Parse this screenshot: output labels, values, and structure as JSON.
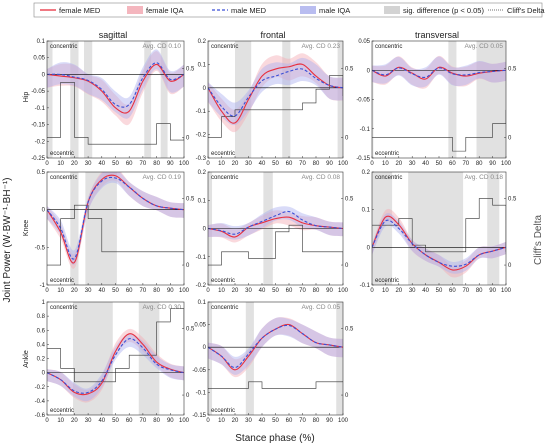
{
  "legend": [
    {
      "label": "female MED",
      "kind": "line",
      "color": "#e8303f",
      "dash": ""
    },
    {
      "label": "female IQA",
      "kind": "band",
      "color": "#f4b6be"
    },
    {
      "label": "male MED",
      "kind": "line",
      "color": "#3a4fd6",
      "dash": "3,2"
    },
    {
      "label": "male IQA",
      "kind": "band",
      "color": "#b9bdf0"
    },
    {
      "label": "sig. difference (p < 0.05)",
      "kind": "band",
      "color": "#d3d3d3"
    },
    {
      "label": "Cliff's Delta",
      "kind": "line",
      "color": "#444444",
      "dash": "1,1"
    }
  ],
  "y_label": "Joint Power (W·BW⁻¹·BH⁻¹)",
  "x_label": "Stance phase (%)",
  "y2_label": "Cliff's Delta",
  "col_titles": [
    "sagittal",
    "frontal",
    "transversal"
  ],
  "row_labels": [
    "Hip",
    "Knee",
    "Ankle"
  ],
  "concentric_label": "concentric",
  "eccentric_label": "eccentric",
  "colors": {
    "female": "#e8303f",
    "male": "#3a4fd6",
    "cliff": "#444444",
    "sig": "#d3d3d3"
  },
  "chart_data": [
    {
      "id": "hip-sagittal",
      "type": "line",
      "row": 0,
      "col": 0,
      "cd": "Avg. CD 0.10",
      "ylim": [
        -0.25,
        0.1
      ],
      "yticks": [
        0.1,
        0.05,
        0,
        -0.05,
        -0.1,
        -0.15,
        -0.2,
        -0.25
      ],
      "y2lim": [
        -0.15,
        0.7
      ],
      "y2ticks": [
        0,
        0.5
      ],
      "x": [
        0,
        10,
        20,
        30,
        40,
        50,
        60,
        70,
        80,
        90,
        100
      ],
      "sig": [
        [
          0,
          4
        ],
        [
          17,
          23
        ],
        [
          27,
          33
        ],
        [
          71,
          76
        ],
        [
          83,
          88
        ]
      ],
      "female": [
        0,
        -0.005,
        -0.01,
        -0.02,
        -0.05,
        -0.1,
        -0.11,
        -0.02,
        0.03,
        -0.02,
        0
      ],
      "male": [
        0,
        0,
        -0.008,
        -0.018,
        -0.045,
        -0.09,
        -0.09,
        -0.01,
        0.035,
        -0.015,
        0
      ],
      "spread": 0.04,
      "cliff": [
        0,
        0.4,
        0,
        -0.05,
        -0.05,
        -0.05,
        -0.05,
        -0.05,
        0.1,
        -0.02,
        0
      ]
    },
    {
      "id": "hip-frontal",
      "type": "line",
      "row": 0,
      "col": 1,
      "cd": "Avg. CD 0.23",
      "ylim": [
        -0.3,
        0.2
      ],
      "yticks": [
        0.2,
        0.1,
        0,
        -0.1,
        -0.2,
        -0.3
      ],
      "y2lim": [
        -0.15,
        0.7
      ],
      "y2ticks": [
        0,
        0.5
      ],
      "x": [
        0,
        10,
        20,
        30,
        40,
        50,
        60,
        70,
        80,
        90,
        100
      ],
      "sig": [
        [
          0,
          1
        ],
        [
          20,
          32
        ],
        [
          55,
          61
        ],
        [
          96,
          100
        ]
      ],
      "female": [
        0,
        -0.1,
        -0.15,
        -0.05,
        0.05,
        0.08,
        0.09,
        0.1,
        0.05,
        0.01,
        0
      ],
      "male": [
        0,
        -0.08,
        -0.12,
        -0.04,
        0.03,
        0.05,
        0.07,
        0.08,
        0.04,
        0.01,
        0
      ],
      "spread": 0.06,
      "cliff": [
        0,
        0.15,
        0.2,
        0.2,
        0.2,
        0.2,
        0.2,
        0.25,
        0.35,
        0.45,
        0.3
      ]
    },
    {
      "id": "hip-transversal",
      "type": "line",
      "row": 0,
      "col": 2,
      "cd": "Avg. CD 0.05",
      "ylim": [
        -0.15,
        0.05
      ],
      "yticks": [
        0.05,
        0,
        -0.05,
        -0.1,
        -0.15
      ],
      "y2lim": [
        -0.15,
        0.7
      ],
      "y2ticks": [
        0,
        0.5
      ],
      "x": [
        0,
        10,
        20,
        30,
        40,
        50,
        60,
        70,
        80,
        90,
        100
      ],
      "sig": [
        [
          0,
          1
        ],
        [
          57,
          63
        ],
        [
          78,
          100
        ]
      ],
      "female": [
        0,
        -0.01,
        0.005,
        -0.005,
        -0.015,
        0.005,
        -0.005,
        -0.01,
        -0.005,
        -0.002,
        0
      ],
      "male": [
        0,
        -0.008,
        0.004,
        -0.006,
        -0.012,
        0.004,
        -0.006,
        -0.008,
        -0.004,
        -0.002,
        0
      ],
      "spread": 0.02,
      "cliff": [
        0,
        0,
        0,
        0,
        0,
        0,
        -0.1,
        0,
        0,
        0.1,
        0.2
      ]
    },
    {
      "id": "knee-sagittal",
      "type": "line",
      "row": 1,
      "col": 0,
      "cd": "Avg. CD 0.19",
      "ylim": [
        -1,
        0.5
      ],
      "yticks": [
        0.5,
        0,
        -0.5,
        -1
      ],
      "y2lim": [
        -0.15,
        0.7
      ],
      "y2ticks": [
        0,
        0.5
      ],
      "x": [
        0,
        10,
        20,
        30,
        40,
        50,
        60,
        70,
        80,
        90,
        100
      ],
      "sig": [
        [
          17,
          23
        ],
        [
          28,
          51
        ]
      ],
      "female": [
        0,
        -0.3,
        -0.7,
        0.1,
        0.4,
        0.45,
        0.3,
        0.15,
        0.05,
        0.02,
        0
      ],
      "male": [
        0,
        -0.25,
        -0.65,
        0.1,
        0.38,
        0.42,
        0.3,
        0.15,
        0.05,
        0.02,
        0
      ],
      "spread": 0.12,
      "cliff": [
        0,
        0.35,
        0.45,
        0.35,
        0.1,
        0.1,
        0.1,
        0.1,
        0.1,
        0.1,
        0
      ]
    },
    {
      "id": "knee-frontal",
      "type": "line",
      "row": 1,
      "col": 1,
      "cd": "Avg. CD 0.08",
      "ylim": [
        -0.2,
        0.2
      ],
      "yticks": [
        0.2,
        0.1,
        0,
        -0.1,
        -0.2
      ],
      "y2lim": [
        -0.15,
        0.7
      ],
      "y2ticks": [
        0,
        0.5
      ],
      "x": [
        0,
        10,
        20,
        30,
        40,
        50,
        60,
        70,
        80,
        90,
        100
      ],
      "sig": [
        [
          0,
          3
        ],
        [
          41,
          48
        ]
      ],
      "female": [
        0,
        -0.01,
        -0.03,
        0.005,
        0.02,
        0.035,
        0.04,
        0.02,
        0.01,
        0.005,
        0
      ],
      "male": [
        0,
        -0.008,
        -0.02,
        0.005,
        0.025,
        0.045,
        0.06,
        0.03,
        0.01,
        0.005,
        0
      ],
      "spread": 0.03,
      "cliff": [
        0,
        0.1,
        0.1,
        0.05,
        0.05,
        0.25,
        0.3,
        0.1,
        0.1,
        0.1,
        0
      ]
    },
    {
      "id": "knee-transversal",
      "type": "line",
      "row": 1,
      "col": 2,
      "cd": "Avg. CD 0.18",
      "ylim": [
        -0.1,
        0.2
      ],
      "yticks": [
        0.2,
        0.1,
        0,
        -0.1
      ],
      "y2lim": [
        -0.15,
        0.7
      ],
      "y2ticks": [
        0,
        0.5
      ],
      "x": [
        0,
        10,
        20,
        30,
        40,
        50,
        60,
        70,
        80,
        90,
        100
      ],
      "sig": [
        [
          0,
          15
        ],
        [
          27,
          68
        ],
        [
          86,
          95
        ]
      ],
      "female": [
        0,
        0.08,
        0.06,
        0.01,
        -0.02,
        -0.04,
        -0.06,
        -0.05,
        -0.02,
        -0.01,
        0
      ],
      "male": [
        0,
        0.07,
        0.05,
        0.01,
        -0.02,
        -0.04,
        -0.05,
        -0.045,
        -0.02,
        -0.01,
        0
      ],
      "spread": 0.02,
      "cliff": [
        0.3,
        0.3,
        0.35,
        0.15,
        0.1,
        0.1,
        0.1,
        0.35,
        0.5,
        0.45,
        0.1
      ]
    },
    {
      "id": "ankle-sagittal",
      "type": "line",
      "row": 2,
      "col": 0,
      "cd": "Avg. CD 0.30",
      "ylim": [
        -0.6,
        1
      ],
      "yticks": [
        1,
        0.8,
        0.6,
        0.4,
        0.2,
        0,
        -0.2,
        -0.4,
        -0.6
      ],
      "y2lim": [
        -0.15,
        0.7
      ],
      "y2ticks": [
        0,
        0.5
      ],
      "x": [
        0,
        10,
        20,
        30,
        40,
        50,
        60,
        70,
        80,
        90,
        100
      ],
      "sig": [
        [
          19,
          48
        ],
        [
          67,
          82
        ]
      ],
      "female": [
        0,
        -0.1,
        -0.28,
        -0.3,
        -0.15,
        0.3,
        0.55,
        0.4,
        0.15,
        0.05,
        0
      ],
      "male": [
        0,
        -0.1,
        -0.26,
        -0.28,
        -0.12,
        0.25,
        0.48,
        0.35,
        0.12,
        0.04,
        0
      ],
      "spread": 0.12,
      "cliff": [
        0.35,
        0.2,
        0.1,
        0.1,
        0.1,
        0.2,
        0.3,
        0.3,
        0.55,
        0.65,
        0.5
      ]
    },
    {
      "id": "ankle-frontal",
      "type": "line",
      "row": 2,
      "col": 1,
      "cd": "Avg. CD 0.05",
      "ylim": [
        -0.15,
        0.1
      ],
      "yticks": [
        0.1,
        0.05,
        0,
        -0.05,
        -0.1,
        -0.15
      ],
      "y2lim": [
        -0.15,
        0.7
      ],
      "y2ticks": [
        0,
        0.5
      ],
      "x": [
        0,
        10,
        20,
        30,
        40,
        50,
        60,
        70,
        80,
        90,
        100
      ],
      "sig": [
        [
          0,
          3
        ],
        [
          28,
          34
        ],
        [
          95,
          100
        ]
      ],
      "female": [
        0,
        -0.02,
        -0.05,
        -0.02,
        0.02,
        0.04,
        0.05,
        0.03,
        0.01,
        0.005,
        0
      ],
      "male": [
        0,
        -0.02,
        -0.045,
        -0.015,
        0.02,
        0.04,
        0.048,
        0.03,
        0.01,
        0.005,
        0
      ],
      "spread": 0.025,
      "cliff": [
        0.05,
        0.05,
        0.05,
        0.1,
        0.05,
        0.05,
        0.05,
        0.05,
        0.1,
        0.1,
        0.1
      ]
    }
  ]
}
